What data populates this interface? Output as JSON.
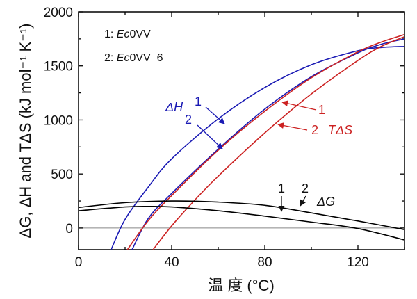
{
  "chart_data": {
    "type": "line",
    "xlabel": "温 度 (°C)",
    "ylabel": "ΔG, ΔH and TΔS (kJ mol⁻¹ K⁻¹)",
    "xlim": [
      0,
      140
    ],
    "ylim": [
      -200,
      2000
    ],
    "x_ticks": [
      "0",
      "40",
      "80",
      "120"
    ],
    "y_ticks": [
      "0",
      "500",
      "1000",
      "1500",
      "2000"
    ],
    "reference_line_y": 0,
    "legend": {
      "position": "top-left",
      "items": [
        {
          "prefix": "1: ",
          "italic": "Ec",
          "rest": "0VV"
        },
        {
          "prefix": "2: ",
          "italic": "Ec",
          "rest": "0VV_6"
        }
      ]
    },
    "colors": {
      "dH": "#1a1ab4",
      "TdS": "#cc2222",
      "dG": "#000000"
    },
    "series": [
      {
        "group": "ΔH",
        "label": "1",
        "color": "#1a1ab4",
        "x": [
          14,
          20,
          30,
          40,
          60,
          80,
          100,
          120,
          130,
          140
        ],
        "y": [
          -200,
          80,
          380,
          640,
          1010,
          1300,
          1510,
          1640,
          1670,
          1680
        ]
      },
      {
        "group": "ΔH",
        "label": "2",
        "color": "#1a1ab4",
        "x": [
          23,
          30,
          40,
          60,
          80,
          100,
          120,
          130,
          140
        ],
        "y": [
          -200,
          90,
          320,
          730,
          1100,
          1400,
          1620,
          1700,
          1750
        ]
      },
      {
        "group": "TΔS",
        "label": "1",
        "color": "#cc2222",
        "x": [
          21,
          30,
          40,
          60,
          80,
          100,
          120,
          130,
          140
        ],
        "y": [
          -200,
          70,
          300,
          720,
          1080,
          1390,
          1630,
          1720,
          1790
        ]
      },
      {
        "group": "TΔS",
        "label": "2",
        "color": "#cc2222",
        "x": [
          32,
          40,
          50,
          60,
          80,
          100,
          120,
          130,
          140
        ],
        "y": [
          -200,
          20,
          260,
          480,
          880,
          1240,
          1550,
          1680,
          1770
        ]
      },
      {
        "group": "ΔG",
        "label": "1",
        "color": "#000000",
        "x": [
          0,
          20,
          30,
          40,
          60,
          80,
          100,
          120,
          140
        ],
        "y": [
          160,
          195,
          200,
          195,
          160,
          110,
          55,
          -5,
          -110
        ]
      },
      {
        "group": "ΔG",
        "label": "2",
        "color": "#000000",
        "x": [
          0,
          20,
          40,
          60,
          80,
          100,
          120,
          140
        ],
        "y": [
          190,
          235,
          250,
          240,
          210,
          140,
          65,
          -15
        ]
      }
    ],
    "annotations": {
      "dH_symbol": {
        "text": "ΔH",
        "color": "#1a1ab4"
      },
      "dH_1": {
        "text": "1",
        "color": "#1a1ab4"
      },
      "dH_2": {
        "text": "2",
        "color": "#1a1ab4"
      },
      "TdS_1": {
        "text": "1",
        "color": "#cc2222"
      },
      "TdS_2": {
        "text": "2",
        "color": "#cc2222"
      },
      "TdS_symbol": {
        "text": "TΔS",
        "color": "#cc2222"
      },
      "dG_1": {
        "text": "1",
        "color": "#111111"
      },
      "dG_2": {
        "text": "2",
        "color": "#111111"
      },
      "dG_symbol": {
        "text": "ΔG",
        "color": "#111111"
      }
    }
  }
}
